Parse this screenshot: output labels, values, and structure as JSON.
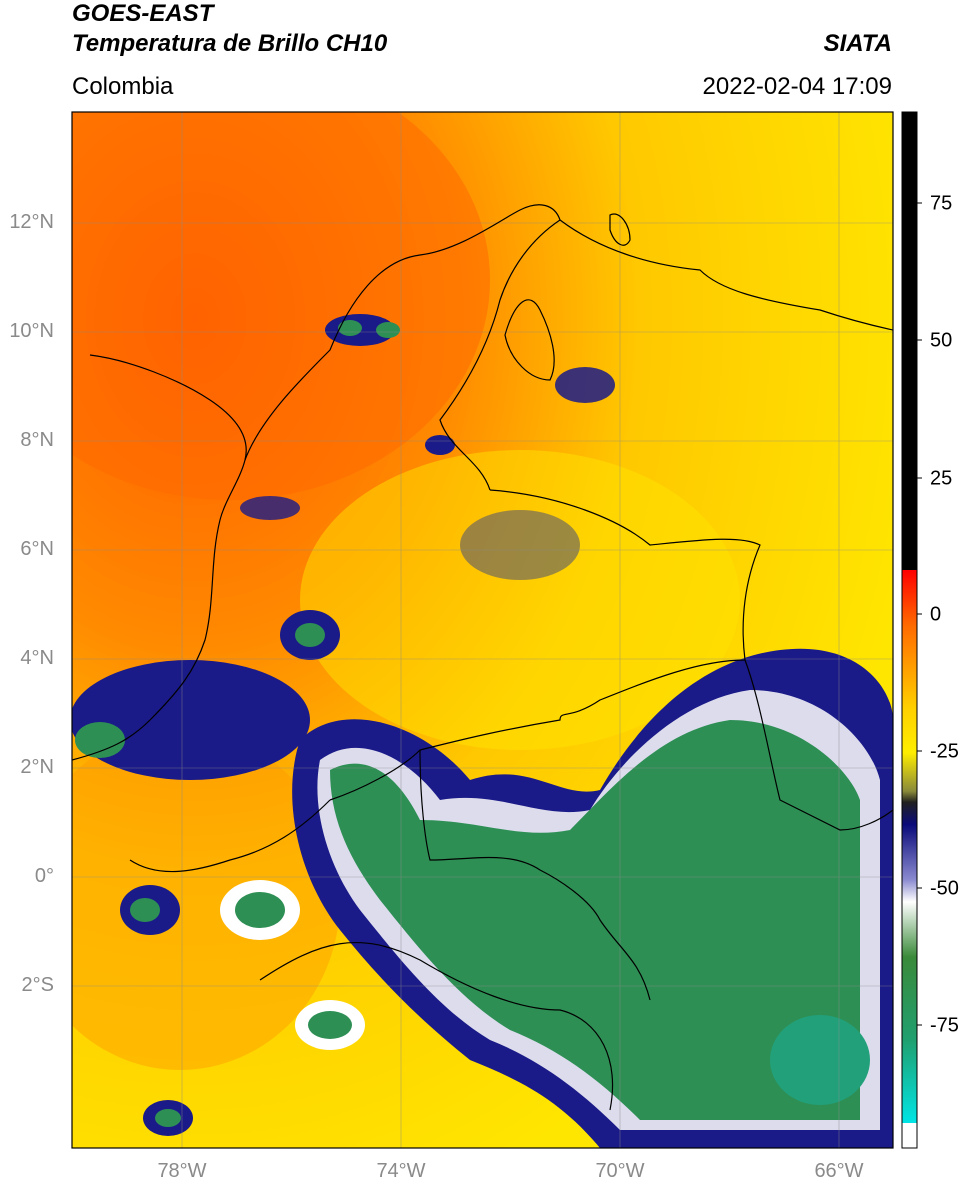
{
  "header": {
    "title_line1": "GOES-EAST",
    "title_line2": "Temperatura de Brillo CH10",
    "region": "Colombia",
    "agency": "SIATA",
    "datetime": "2022-02-04 17:09"
  },
  "axes": {
    "lat_ticks": [
      "12°N",
      "10°N",
      "8°N",
      "6°N",
      "4°N",
      "2°N",
      "0°",
      "2°S"
    ],
    "lon_ticks": [
      "78°W",
      "74°W",
      "70°W",
      "66°W"
    ],
    "lat_range": [
      -5,
      14
    ],
    "lon_range": [
      -80,
      -65
    ]
  },
  "colorbar": {
    "ticks": [
      "75",
      "50",
      "25",
      "0",
      "-25",
      "-50",
      "-75"
    ],
    "range": [
      -95,
      90
    ],
    "colors": {
      "above_10": "#000000",
      "warm": "#ff0000",
      "mid": "#ffea00",
      "cold_blue": "#0a0a7a",
      "white": "#ffffff",
      "green": "#2a8a3c",
      "cyan": "#00e5e5"
    }
  }
}
